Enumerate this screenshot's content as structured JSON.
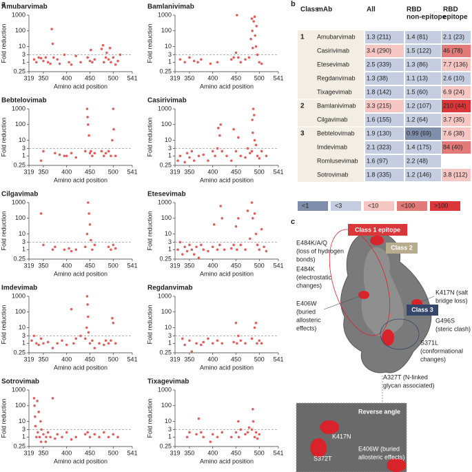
{
  "panels": [
    "a",
    "b",
    "c"
  ],
  "chart_data": [
    {
      "type": "scatter",
      "title": "Amubarvimab",
      "xlabel": "Amino acid position",
      "ylabel": "Fold reduction",
      "log_y": true,
      "color": "#e06060",
      "threshold": 3,
      "xlim": [
        319,
        541
      ],
      "ylim": [
        0.25,
        1000
      ],
      "xticks": [
        319,
        350,
        400,
        450,
        500,
        541
      ],
      "yticks": [
        0.25,
        1,
        3,
        10,
        100,
        1000
      ],
      "x": [
        330,
        335,
        340,
        345,
        350,
        355,
        360,
        365,
        368,
        370,
        372,
        380,
        385,
        395,
        405,
        410,
        420,
        430,
        445,
        450,
        452,
        455,
        460,
        475,
        478,
        480,
        484,
        486,
        490,
        493,
        495,
        500,
        505,
        510,
        515
      ],
      "values": [
        1.5,
        1,
        2,
        1.8,
        1.2,
        2,
        1,
        0.8,
        130,
        15,
        2,
        1.5,
        0.8,
        3,
        1,
        0.7,
        2.5,
        1,
        2,
        1.2,
        6,
        1,
        1.5,
        7,
        12,
        1,
        2,
        4,
        1.5,
        8,
        1,
        2,
        0.7,
        1.2,
        3
      ]
    },
    {
      "type": "scatter",
      "title": "Bamlanivimab",
      "xlabel": "Amino acid position",
      "ylabel": "Fold reduction",
      "log_y": true,
      "color": "#e06060",
      "threshold": 3,
      "xlim": [
        319,
        541
      ],
      "ylim": [
        0.25,
        1000
      ],
      "xticks": [
        319,
        350,
        400,
        450,
        500,
        541
      ],
      "yticks": [
        0.25,
        1,
        3,
        10,
        100,
        1000
      ],
      "x": [
        330,
        340,
        350,
        360,
        368,
        375,
        395,
        410,
        440,
        445,
        450,
        452,
        455,
        460,
        470,
        478,
        482,
        484,
        485,
        486,
        488,
        490,
        491,
        493,
        494,
        496,
        500,
        505
      ],
      "values": [
        1.5,
        1,
        2,
        1.2,
        1,
        1.5,
        0.8,
        1,
        1.5,
        2,
        4,
        1000,
        2,
        1,
        1.5,
        2,
        30,
        600,
        100,
        8,
        400,
        800,
        50,
        10,
        200,
        3,
        1,
        0.8
      ]
    },
    {
      "type": "scatter",
      "title": "Bebtelovimab",
      "xlabel": "Amino acid position",
      "ylabel": "Fold reduction",
      "log_y": true,
      "color": "#e06060",
      "threshold": 3,
      "xlim": [
        319,
        541
      ],
      "ylim": [
        0.25,
        1000
      ],
      "xticks": [
        319,
        350,
        400,
        450,
        500,
        541
      ],
      "yticks": [
        0.25,
        1,
        3,
        10,
        100,
        1000
      ],
      "x": [
        345,
        350,
        375,
        385,
        395,
        400,
        410,
        420,
        440,
        444,
        445,
        446,
        448,
        450,
        452,
        455,
        460,
        475,
        480,
        484,
        490,
        495,
        498,
        500,
        501,
        505
      ],
      "values": [
        0.5,
        2,
        1.5,
        1.2,
        1,
        1,
        1.5,
        0.8,
        2,
        1000,
        300,
        100,
        20,
        1.5,
        2,
        1,
        1.5,
        2,
        1,
        1.5,
        2,
        1,
        10,
        1000,
        50,
        1
      ]
    },
    {
      "type": "scatter",
      "title": "Casirivimab",
      "xlabel": "Amino acid position",
      "ylabel": "Fold reduction",
      "log_y": true,
      "color": "#e06060",
      "threshold": 3,
      "xlim": [
        319,
        541
      ],
      "ylim": [
        0.25,
        1000
      ],
      "xticks": [
        319,
        350,
        400,
        450,
        500,
        541
      ],
      "yticks": [
        0.25,
        1,
        3,
        10,
        100,
        1000
      ],
      "x": [
        325,
        330,
        340,
        345,
        350,
        355,
        360,
        370,
        380,
        390,
        400,
        405,
        410,
        412,
        415,
        417,
        420,
        430,
        440,
        445,
        450,
        455,
        460,
        470,
        475,
        480,
        484,
        485,
        486,
        487,
        489,
        490,
        493,
        496,
        500,
        505,
        515
      ],
      "values": [
        0.5,
        1,
        0.4,
        1.5,
        0.8,
        2,
        0.5,
        1,
        1.2,
        0.5,
        2,
        1,
        3,
        60,
        20,
        100,
        2,
        1,
        0.5,
        50,
        2,
        15,
        1,
        0.8,
        3,
        1.5,
        2,
        200,
        30,
        1000,
        400,
        10,
        5,
        1,
        0.7,
        2,
        1
      ]
    },
    {
      "type": "scatter",
      "title": "Cilgavimab",
      "xlabel": "Amino acid position",
      "ylabel": "Fold reduction",
      "log_y": true,
      "color": "#e06060",
      "threshold": 3,
      "xlim": [
        319,
        541
      ],
      "ylim": [
        0.25,
        1000
      ],
      "xticks": [
        319,
        350,
        400,
        450,
        500,
        541
      ],
      "yticks": [
        0.25,
        1,
        3,
        10,
        100,
        1000
      ],
      "x": [
        345,
        350,
        370,
        375,
        395,
        405,
        410,
        420,
        440,
        444,
        446,
        448,
        450,
        452,
        455,
        460,
        490,
        495,
        500,
        505
      ],
      "values": [
        200,
        2,
        1,
        1.5,
        1,
        1.2,
        0.8,
        1,
        1.5,
        10,
        1000,
        200,
        40,
        4,
        1,
        2,
        1.5,
        1,
        2,
        1.2
      ]
    },
    {
      "type": "scatter",
      "title": "Etesevimab",
      "xlabel": "Amino acid position",
      "ylabel": "Fold reduction",
      "log_y": true,
      "color": "#e06060",
      "threshold": 3,
      "xlim": [
        319,
        541
      ],
      "ylim": [
        0.25,
        1000
      ],
      "xticks": [
        319,
        350,
        400,
        450,
        500,
        541
      ],
      "yticks": [
        0.25,
        1,
        3,
        10,
        100,
        1000
      ],
      "x": [
        325,
        330,
        335,
        340,
        345,
        350,
        355,
        360,
        365,
        370,
        375,
        380,
        390,
        400,
        403,
        410,
        415,
        417,
        420,
        425,
        440,
        445,
        450,
        452,
        455,
        460,
        470,
        475,
        480,
        484,
        486,
        490,
        493,
        496,
        500,
        505,
        510,
        515
      ],
      "values": [
        1,
        3,
        0.5,
        1.5,
        0.8,
        2,
        1,
        0.5,
        1.5,
        0.3,
        2,
        1,
        0.8,
        1.5,
        40,
        1,
        2,
        600,
        100,
        1,
        1.2,
        2,
        30,
        1,
        100,
        2,
        1,
        300,
        5,
        1000,
        100,
        200,
        10,
        2,
        1,
        20,
        1.5,
        0.8
      ]
    },
    {
      "type": "scatter",
      "title": "Imdevimab",
      "xlabel": "Amino acid position",
      "ylabel": "Fold reduction",
      "log_y": true,
      "color": "#e06060",
      "threshold": 3,
      "xlim": [
        319,
        541
      ],
      "ylim": [
        0.25,
        1000
      ],
      "xticks": [
        319,
        350,
        400,
        450,
        500,
        541
      ],
      "yticks": [
        0.25,
        1,
        3,
        10,
        100,
        1000
      ],
      "x": [
        325,
        330,
        335,
        340,
        345,
        350,
        360,
        370,
        380,
        390,
        400,
        410,
        415,
        420,
        430,
        440,
        443,
        444,
        445,
        446,
        447,
        450,
        455,
        460,
        470,
        480,
        484,
        490,
        495,
        498,
        500,
        505
      ],
      "values": [
        1.5,
        3,
        1,
        0.8,
        2,
        1,
        1.2,
        0.5,
        1,
        1.5,
        0.8,
        150,
        1,
        2,
        3,
        2,
        10,
        1000,
        300,
        50,
        5,
        1,
        1.5,
        0.5,
        1,
        0.8,
        1.5,
        1,
        1.5,
        40,
        20,
        1
      ]
    },
    {
      "type": "scatter",
      "title": "Regdanvimab",
      "xlabel": "Amino acid position",
      "ylabel": "Fold reduction",
      "log_y": true,
      "color": "#e06060",
      "threshold": 3,
      "xlim": [
        319,
        541
      ],
      "ylim": [
        0.25,
        1000
      ],
      "xticks": [
        319,
        350,
        400,
        450,
        500,
        541
      ],
      "yticks": [
        0.25,
        1,
        3,
        10,
        100,
        1000
      ],
      "x": [
        335,
        340,
        350,
        355,
        365,
        375,
        380,
        390,
        400,
        410,
        420,
        445,
        450,
        452,
        455,
        460,
        470,
        484,
        490,
        493,
        495,
        500,
        505
      ],
      "values": [
        2,
        0.8,
        1.5,
        0.3,
        1,
        0.8,
        1.2,
        2,
        1,
        1.5,
        1,
        1.2,
        20,
        1,
        3,
        1.5,
        1,
        2,
        10,
        20,
        1,
        1.5,
        1
      ]
    },
    {
      "type": "scatter",
      "title": "Sotrovimab",
      "xlabel": "Amino acid position",
      "ylabel": "Fold reduction",
      "log_y": true,
      "color": "#e06060",
      "threshold": 3,
      "xlim": [
        319,
        541
      ],
      "ylim": [
        0.25,
        1000
      ],
      "xticks": [
        319,
        350,
        400,
        450,
        500,
        541
      ],
      "yticks": [
        0.25,
        1,
        3,
        10,
        100,
        1000
      ],
      "x": [
        330,
        331,
        332,
        333,
        335,
        337,
        338,
        340,
        342,
        344,
        345,
        346,
        350,
        355,
        356,
        360,
        365,
        370,
        375,
        380,
        390,
        400,
        410,
        420,
        440,
        445,
        450,
        460,
        470,
        480,
        490,
        500,
        510
      ],
      "values": [
        300,
        100,
        20,
        5,
        1,
        200,
        2,
        40,
        1,
        10,
        0.5,
        3,
        1.5,
        0.5,
        1,
        2,
        1,
        300,
        0.8,
        1.5,
        1,
        2,
        0.7,
        1,
        1.5,
        2,
        1,
        1.5,
        1,
        2,
        1,
        1.5,
        1
      ]
    },
    {
      "type": "scatter",
      "title": "Tixagevimab",
      "xlabel": "Amino acid position",
      "ylabel": "Fold reduction",
      "log_y": true,
      "color": "#e06060",
      "threshold": 3,
      "xlim": [
        319,
        541
      ],
      "ylim": [
        0.25,
        1000
      ],
      "xticks": [
        319,
        350,
        400,
        450,
        500,
        541
      ],
      "yticks": [
        0.25,
        1,
        3,
        10,
        100,
        1000
      ],
      "x": [
        345,
        350,
        365,
        370,
        375,
        380,
        395,
        400,
        410,
        420,
        440,
        450,
        455,
        456,
        460,
        470,
        475,
        478,
        484,
        486,
        487,
        490,
        493,
        496,
        500
      ],
      "values": [
        1,
        2,
        1.5,
        15,
        2,
        1,
        0.5,
        1.5,
        1,
        2,
        1,
        2,
        10,
        1,
        3,
        1.5,
        2,
        4,
        3,
        60,
        10,
        1,
        2,
        0.8,
        1.5
      ]
    }
  ],
  "table": {
    "headers": [
      [
        "Class"
      ],
      [
        "mAb"
      ],
      [
        "All"
      ],
      [
        "RBD",
        "non-epitope"
      ],
      [
        "RBD",
        "epitope"
      ]
    ],
    "rows": [
      {
        "class": "1",
        "mAb": "Amubarvimab",
        "cells": [
          "1.3 (211)",
          "1.4 (81)",
          "2.1 (23)"
        ],
        "colors": [
          "#c5cde0",
          "#c5cde0",
          "#c5cde0"
        ]
      },
      {
        "mAb": "Casirivimab",
        "cells": [
          "3.4 (290)",
          "1.5 (122)",
          "46 (78)"
        ],
        "colors": [
          "#f6c6c3",
          "#c5cde0",
          "#e27a78"
        ]
      },
      {
        "mAb": "Etesevimab",
        "cells": [
          "2.5 (339)",
          "1.3 (86)",
          "7.7 (136)"
        ],
        "colors": [
          "#c5cde0",
          "#c5cde0",
          "#f6c6c3"
        ]
      },
      {
        "mAb": "Regdanvimab",
        "cells": [
          "1.3 (38)",
          "1.1 (13)",
          "2.6 (10)"
        ],
        "colors": [
          "#c5cde0",
          "#c5cde0",
          "#c5cde0"
        ]
      },
      {
        "mAb": "Tixagevimab",
        "cells": [
          "1.8 (142)",
          "1.5 (60)",
          "6.9 (24)"
        ],
        "colors": [
          "#c5cde0",
          "#c5cde0",
          "#f6c6c3"
        ]
      },
      {
        "class": "2",
        "mAb": "Bamlanivimab",
        "cells": [
          "3.3 (215)",
          "1.2 (107)",
          "210 (44)"
        ],
        "colors": [
          "#f6c6c3",
          "#c5cde0",
          "#d9373a"
        ]
      },
      {
        "mAb": "Cilgavimab",
        "cells": [
          "1.6 (155)",
          "1.2 (64)",
          "3.7 (35)"
        ],
        "colors": [
          "#c5cde0",
          "#c5cde0",
          "#f6c6c3"
        ]
      },
      {
        "class": "3",
        "mAb": "Bebtelovimab",
        "cells": [
          "1.9 (130)",
          "0.99 (69)",
          "7.6 (38)"
        ],
        "colors": [
          "#c5cde0",
          "#7f8fab",
          "#f6c6c3"
        ]
      },
      {
        "mAb": "Imdevimab",
        "cells": [
          "2.1 (323)",
          "1.4 (175)",
          "84 (40)"
        ],
        "colors": [
          "#c5cde0",
          "#c5cde0",
          "#e27a78"
        ]
      },
      {
        "mAb": "Romlusevimab",
        "cells": [
          "1.6 (97)",
          "2.2 (48)",
          null
        ],
        "colors": [
          "#c5cde0",
          "#c5cde0",
          null
        ]
      },
      {
        "mAb": "Sotrovimab",
        "cells": [
          "1.8 (335)",
          "1.2 (146)",
          "3.8 (112)"
        ],
        "colors": [
          "#c5cde0",
          "#c5cde0",
          "#f6c6c3"
        ]
      }
    ],
    "legend": [
      {
        "label": "<1",
        "color": "#7f8fab"
      },
      {
        "label": "<3",
        "color": "#c5cde0"
      },
      {
        "label": "<10",
        "color": "#f6c6c3"
      },
      {
        "label": "<100",
        "color": "#e27a78"
      },
      {
        "label": ">100",
        "color": "#d9373a"
      }
    ]
  },
  "diagram": {
    "class1": "Class 1 epitope",
    "class2": "Class 2",
    "class3": "Class 3",
    "left": [
      [
        "E484K/A/Q",
        "(loss of hydrogen",
        "bonds)"
      ],
      [
        "E484K",
        "(electrostatic",
        "changes)"
      ],
      [
        "E406W",
        "(buried",
        "allosteric",
        "effects)"
      ]
    ],
    "right": [
      [
        "K417N (salt",
        "bridge loss)"
      ],
      [
        "G496S",
        "(steric clash)"
      ],
      [
        "S371L",
        "(conformational",
        "changes)"
      ],
      [
        "A327T (N-linked",
        "glycan associated)"
      ]
    ],
    "inset": {
      "title": "Reverse angle",
      "labels": [
        [
          "K417N"
        ],
        [
          "E406W (buried",
          "allosteric effects)"
        ],
        [
          "S372T"
        ]
      ]
    }
  }
}
